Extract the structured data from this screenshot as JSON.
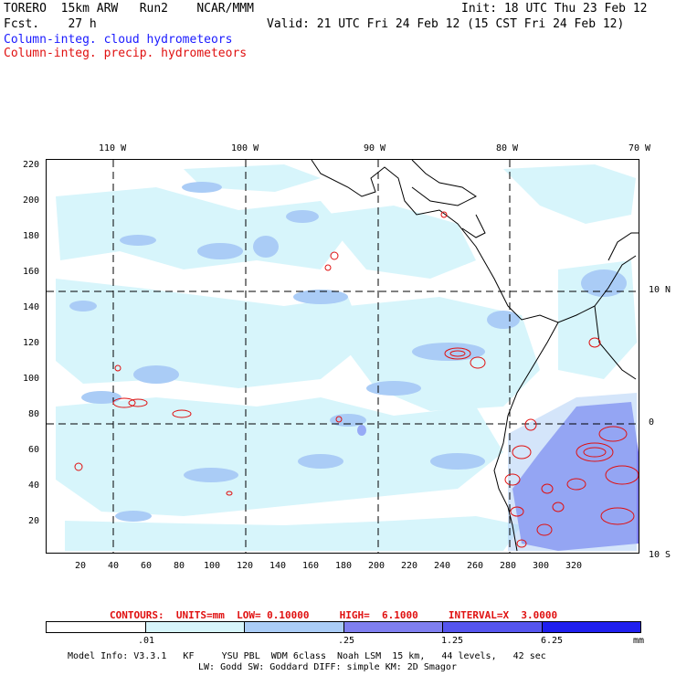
{
  "header": {
    "model_title": "TORERO  15km ARW   Run2    NCAR/MMM",
    "forecast": "Fcst.    27 h",
    "init": "Init: 18 UTC Thu 23 Feb 12",
    "valid": "Valid: 21 UTC Fri 24 Feb 12 (15 CST Fri 24 Feb 12)",
    "field_cloud": "Column-integ. cloud hydrometeors",
    "field_precip": "Column-integ. precip. hydrometeors"
  },
  "map": {
    "lon_labels_top": [
      "110 W",
      "100 W",
      "90 W",
      "80 W",
      "70 W"
    ],
    "lat_labels_right": [
      "10 N",
      "0",
      "10 S"
    ],
    "y_ticks": [
      "220",
      "200",
      "180",
      "160",
      "140",
      "120",
      "100",
      "80",
      "60",
      "40",
      "20"
    ],
    "x_ticks": [
      "20",
      "40",
      "60",
      "80",
      "100",
      "120",
      "140",
      "160",
      "180",
      "200",
      "220",
      "240",
      "260",
      "280",
      "300",
      "320"
    ]
  },
  "contours": {
    "label": "CONTOURS:  UNITS=mm  LOW= 0.10000     HIGH=  6.1000     INTERVAL=X  3.0000"
  },
  "colorbar": {
    "colors": [
      "#ffffff",
      "#d7f5fb",
      "#aaccf6",
      "#7f7ff0",
      "#5555ee",
      "#1f1fee"
    ],
    "labels": [
      ".01",
      ".25",
      "1.25",
      "6.25"
    ],
    "unit": "mm"
  },
  "footer": {
    "line1": "Model Info: V3.3.1   KF     YSU PBL  WDM 6class  Noah LSM  15 km,   44 levels,   42 sec",
    "line2": "LW: Godd SW: Goddard DIFF: simple KM: 2D Smagor"
  }
}
